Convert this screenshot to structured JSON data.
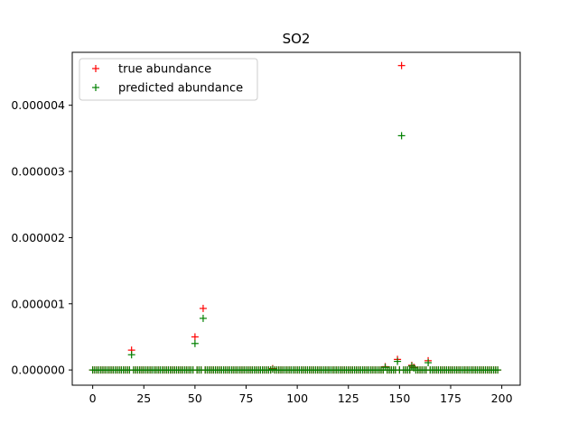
{
  "chart_data": {
    "type": "scatter",
    "title": "SO2",
    "xlabel": "",
    "ylabel": "",
    "xlim": [
      -10,
      209
    ],
    "ylim": [
      -2.3e-07,
      4.8e-06
    ],
    "x_ticks": [
      0,
      25,
      50,
      75,
      100,
      125,
      150,
      175,
      200
    ],
    "x_tick_labels": [
      "0",
      "25",
      "50",
      "75",
      "100",
      "125",
      "150",
      "175",
      "200"
    ],
    "y_ticks": [
      0,
      1e-06,
      2e-06,
      3e-06,
      4e-06
    ],
    "y_tick_labels": [
      "0.000000",
      "0.000001",
      "0.000002",
      "0.000003",
      "0.000004"
    ],
    "grid": false,
    "legend_position": "top-left",
    "series": [
      {
        "name": "true abundance",
        "color": "#ff0000",
        "marker": "plus",
        "points": [
          [
            19,
            3e-07
          ],
          [
            50,
            5e-07
          ],
          [
            54,
            9.3e-07
          ],
          [
            88,
            2e-08
          ],
          [
            143,
            5e-08
          ],
          [
            149,
            1.6e-07
          ],
          [
            151,
            4.6e-06
          ],
          [
            156,
            7e-08
          ],
          [
            157,
            4e-08
          ],
          [
            164,
            1.4e-07
          ]
        ]
      },
      {
        "name": "predicted abundance",
        "color": "#008000",
        "marker": "plus",
        "points": [
          [
            19,
            2.3e-07
          ],
          [
            50,
            4e-07
          ],
          [
            54,
            7.8e-07
          ],
          [
            88,
            1e-08
          ],
          [
            143,
            4e-08
          ],
          [
            149,
            1.3e-07
          ],
          [
            151,
            3.54e-06
          ],
          [
            156,
            6e-08
          ],
          [
            157,
            3e-08
          ],
          [
            164,
            1.1e-07
          ]
        ]
      }
    ],
    "baseline_x_range": [
      0,
      198
    ],
    "baseline_value": 0
  }
}
